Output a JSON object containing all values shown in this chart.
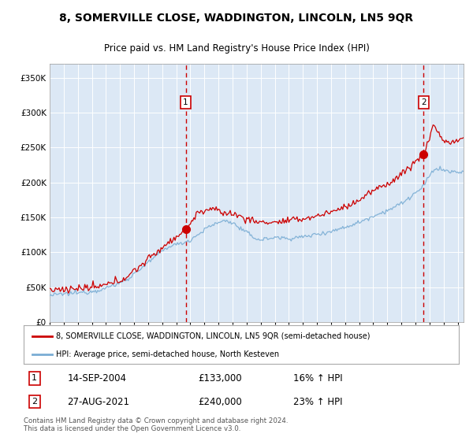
{
  "title1": "8, SOMERVILLE CLOSE, WADDINGTON, LINCOLN, LN5 9QR",
  "title2": "Price paid vs. HM Land Registry's House Price Index (HPI)",
  "red_label": "8, SOMERVILLE CLOSE, WADDINGTON, LINCOLN, LN5 9QR (semi-detached house)",
  "blue_label": "HPI: Average price, semi-detached house, North Kesteven",
  "sale1_date": "14-SEP-2004",
  "sale1_price": "£133,000",
  "sale1_hpi": "16% ↑ HPI",
  "sale2_date": "27-AUG-2021",
  "sale2_price": "£240,000",
  "sale2_hpi": "23% ↑ HPI",
  "footnote": "Contains HM Land Registry data © Crown copyright and database right 2024.\nThis data is licensed under the Open Government Licence v3.0.",
  "ylim": [
    0,
    370000
  ],
  "yticks": [
    0,
    50000,
    100000,
    150000,
    200000,
    250000,
    300000,
    350000
  ],
  "ytick_labels": [
    "£0",
    "£50K",
    "£100K",
    "£150K",
    "£200K",
    "£250K",
    "£300K",
    "£350K"
  ],
  "background_color": "#dce8f5",
  "red_color": "#cc0000",
  "blue_color": "#7aadd4",
  "vline_color": "#cc0000",
  "box_edge_color": "#cc0000"
}
